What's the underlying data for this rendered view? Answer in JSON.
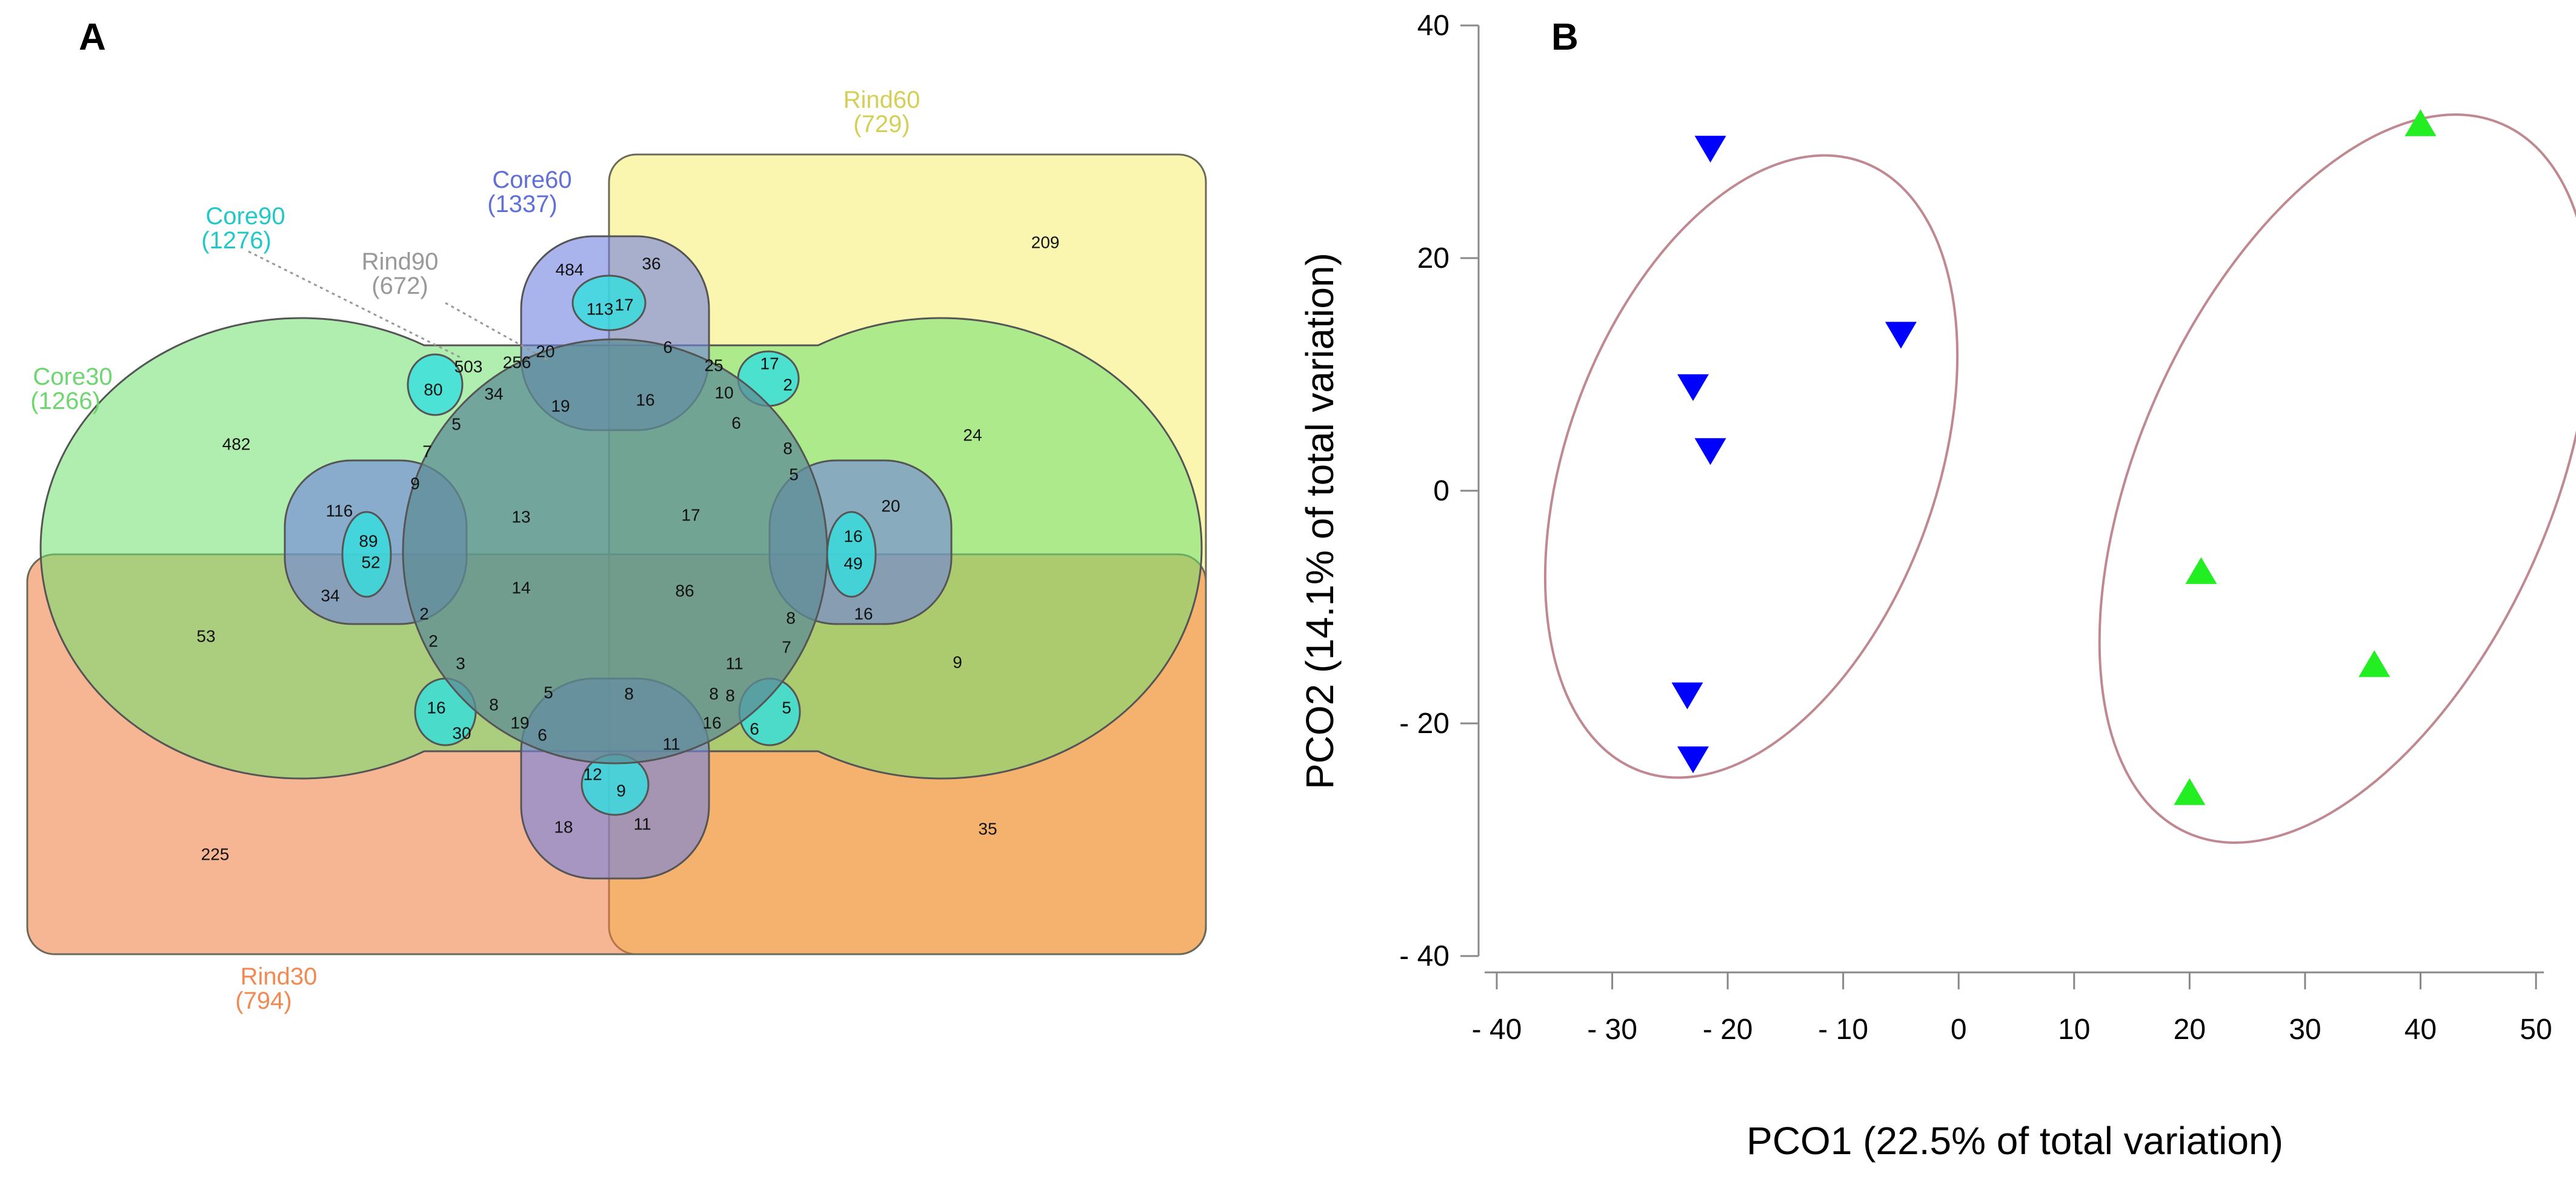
{
  "panels": {
    "a_label": "A",
    "b_label": "B"
  },
  "venn": {
    "sets": [
      {
        "id": "rind60",
        "name": "Rind60",
        "count": "(729)",
        "color": "#e8e27a"
      },
      {
        "id": "core60",
        "name": "Core60",
        "count": "(1337)",
        "color": "#6f7fdc"
      },
      {
        "id": "core90",
        "name": "Core90",
        "count": "(1276)",
        "color": "#33d6d6"
      },
      {
        "id": "rind90",
        "name": "Rind90",
        "count": "(672)",
        "color": "#9a9a9a"
      },
      {
        "id": "core30",
        "name": "Core30",
        "count": "(1266)",
        "color": "#74e27a"
      },
      {
        "id": "rind30",
        "name": "Rind30",
        "count": "(794)",
        "color": "#f08a52"
      }
    ],
    "region_counts": [
      "209",
      "24",
      "9",
      "35",
      "482",
      "53",
      "225",
      "484",
      "36",
      "113",
      "17",
      "256",
      "503",
      "20",
      "6",
      "25",
      "17",
      "2",
      "10",
      "80",
      "34",
      "19",
      "16",
      "6",
      "5",
      "7",
      "8",
      "9",
      "5",
      "116",
      "13",
      "17",
      "20",
      "89",
      "52",
      "16",
      "49",
      "34",
      "14",
      "86",
      "16",
      "2",
      "8",
      "8",
      "7",
      "2",
      "3",
      "11",
      "16",
      "30",
      "8",
      "5",
      "8",
      "8",
      "5",
      "19",
      "6",
      "16",
      "6",
      "12",
      "11",
      "9",
      "18",
      "11"
    ]
  },
  "chart_data": {
    "type": "scatter",
    "xlabel": "PCO1 (22.5% of total variation)",
    "ylabel": "PCO2 (14.1% of total variation)",
    "xlim": [
      -40,
      50
    ],
    "ylim": [
      -40,
      40
    ],
    "x_ticks": [
      -40,
      -30,
      -20,
      -10,
      0,
      10,
      20,
      30,
      40,
      50
    ],
    "x_tick_labels": [
      "- 40",
      "- 30",
      "- 20",
      "- 10",
      "0",
      "10",
      "20",
      "30",
      "40",
      "50"
    ],
    "y_ticks": [
      40,
      20,
      0,
      -20,
      -40
    ],
    "y_tick_labels": [
      "40",
      "20",
      "0",
      "- 20",
      "- 40"
    ],
    "series": [
      {
        "name": "group-blue",
        "marker": "triangle-down",
        "color": "#0000ff",
        "points": [
          [
            -21.5,
            29.5
          ],
          [
            -5,
            13.5
          ],
          [
            -23,
            9
          ],
          [
            -21.5,
            3.5
          ],
          [
            -23.5,
            -17.5
          ],
          [
            -23,
            -23
          ]
        ]
      },
      {
        "name": "group-green",
        "marker": "triangle-up",
        "color": "#22ee22",
        "points": [
          [
            40,
            31.5
          ],
          [
            21,
            -7
          ],
          [
            36,
            -15
          ],
          [
            20,
            -26
          ]
        ]
      }
    ],
    "ellipse_color": "#c08890"
  }
}
